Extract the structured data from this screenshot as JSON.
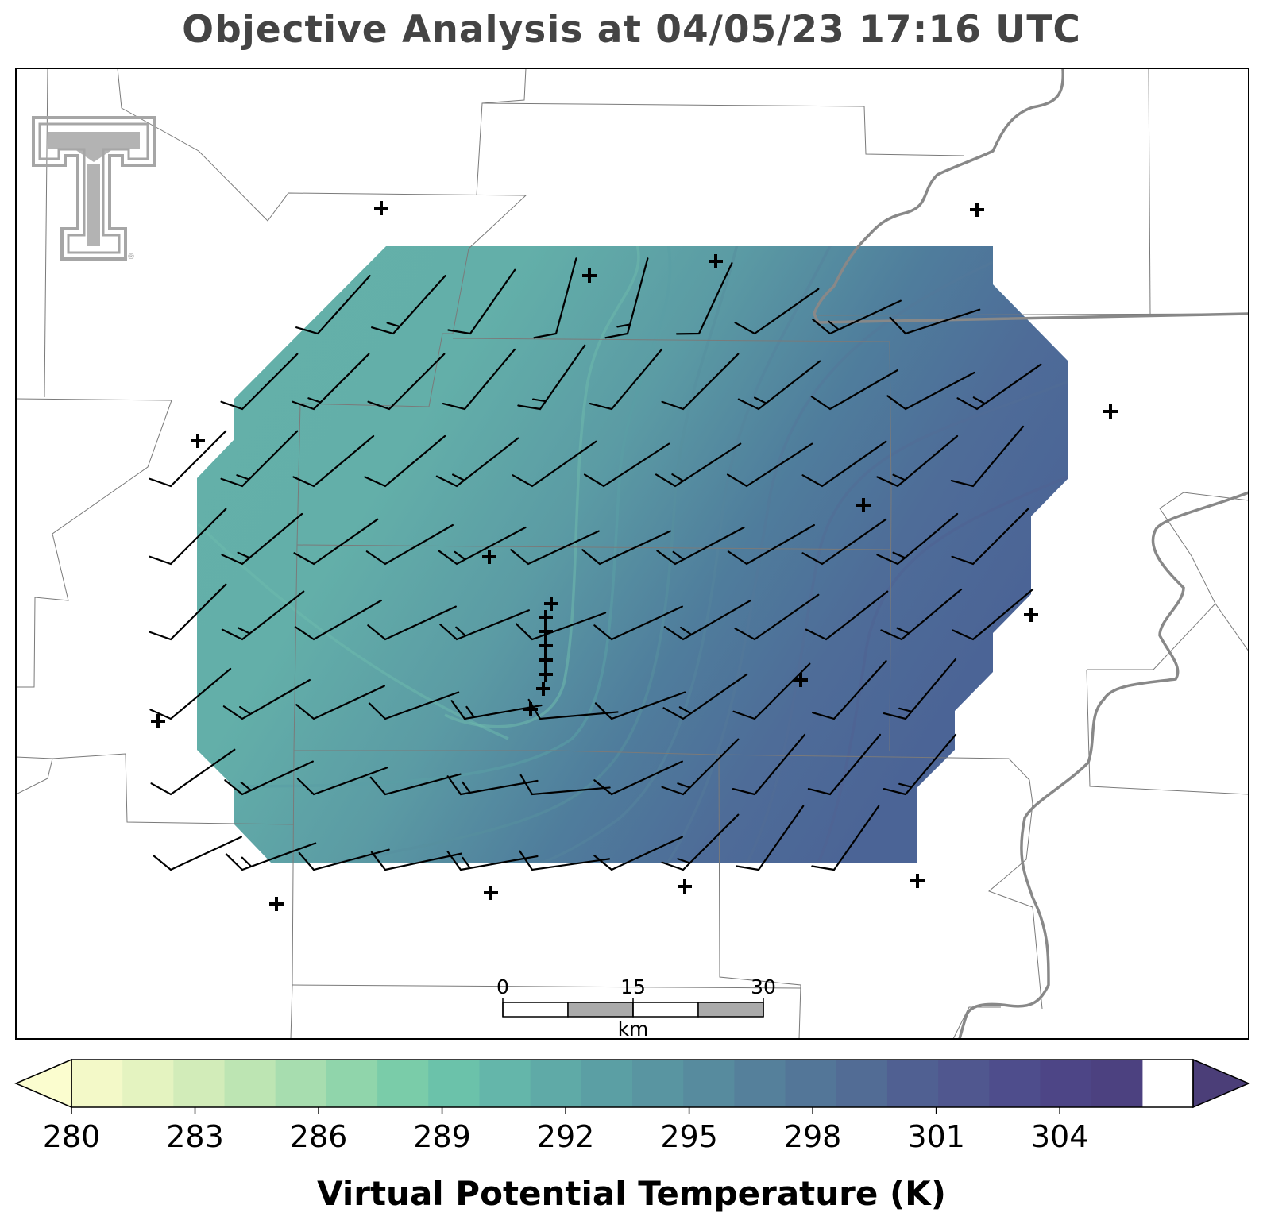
{
  "title": "Objective Analysis at 04/05/23 17:16 UTC",
  "colorbar": {
    "label": "Virtual Potential Temperature (K)",
    "ticks": [
      "280",
      "283",
      "286",
      "289",
      "292",
      "295",
      "298",
      "301",
      "304"
    ],
    "min": 280,
    "max": 306,
    "step": 1,
    "extend": "both",
    "colors": [
      "#fbfdcf",
      "#f3f9c8",
      "#e4f3c0",
      "#d2ecb9",
      "#bde5b3",
      "#a7ddaf",
      "#90d5ab",
      "#7acca9",
      "#6bc2aa",
      "#64b6aa",
      "#5faaa7",
      "#5b9fa4",
      "#5995a1",
      "#578b9e",
      "#55809b",
      "#537698",
      "#526c95",
      "#506092",
      "#50578f",
      "#4e4d8c",
      "#4d4586",
      "#4c4180",
      "#4b3e78"
    ]
  },
  "analysis_field": {
    "variable": "Virtual Potential Temperature",
    "units": "K",
    "range": [
      290,
      302
    ],
    "gradient": "increasing toward the southeast"
  },
  "scale_bar": {
    "ticks": [
      "0",
      "15",
      "30"
    ],
    "unit": "km"
  },
  "logo": {
    "name": "Texas Tech double-T logo",
    "color": "#a6a6a6"
  },
  "stations": {
    "marker": "plus",
    "count": 30
  },
  "wind_barbs": {
    "rows": 8,
    "color": "#000000",
    "direction": "southwesterly to westerly"
  }
}
